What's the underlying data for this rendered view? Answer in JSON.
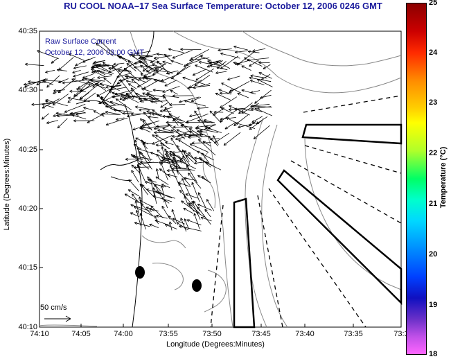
{
  "title": "RU COOL  NOAA–17  Sea Surface Temperature:  October 12, 2006 0246 GMT",
  "inset": {
    "line1": "Raw Surface Current",
    "line2": "October 12, 2006 03:00 GMT"
  },
  "axes": {
    "xlabel": "Longitude (Degrees:Minutes)",
    "ylabel": "Latitude (Degrees:Minutes)",
    "xticks": [
      "74:10",
      "74:05",
      "74:00",
      "73:55",
      "73:50",
      "73:45",
      "73:40",
      "73:35",
      "73:3"
    ],
    "yticks": [
      "40:35",
      "40:30",
      "40:25",
      "40:20",
      "40:15",
      "40:10"
    ]
  },
  "scale": {
    "label": "50 cm/s"
  },
  "colorbar": {
    "label": "Temperature (°C)",
    "ticks": [
      "25",
      "24",
      "23",
      "22",
      "21",
      "20",
      "19",
      "18"
    ],
    "range": [
      18,
      25
    ]
  },
  "colors": {
    "title": "#1a1a9c",
    "arrows": "#000000",
    "contours": "#888888"
  }
}
